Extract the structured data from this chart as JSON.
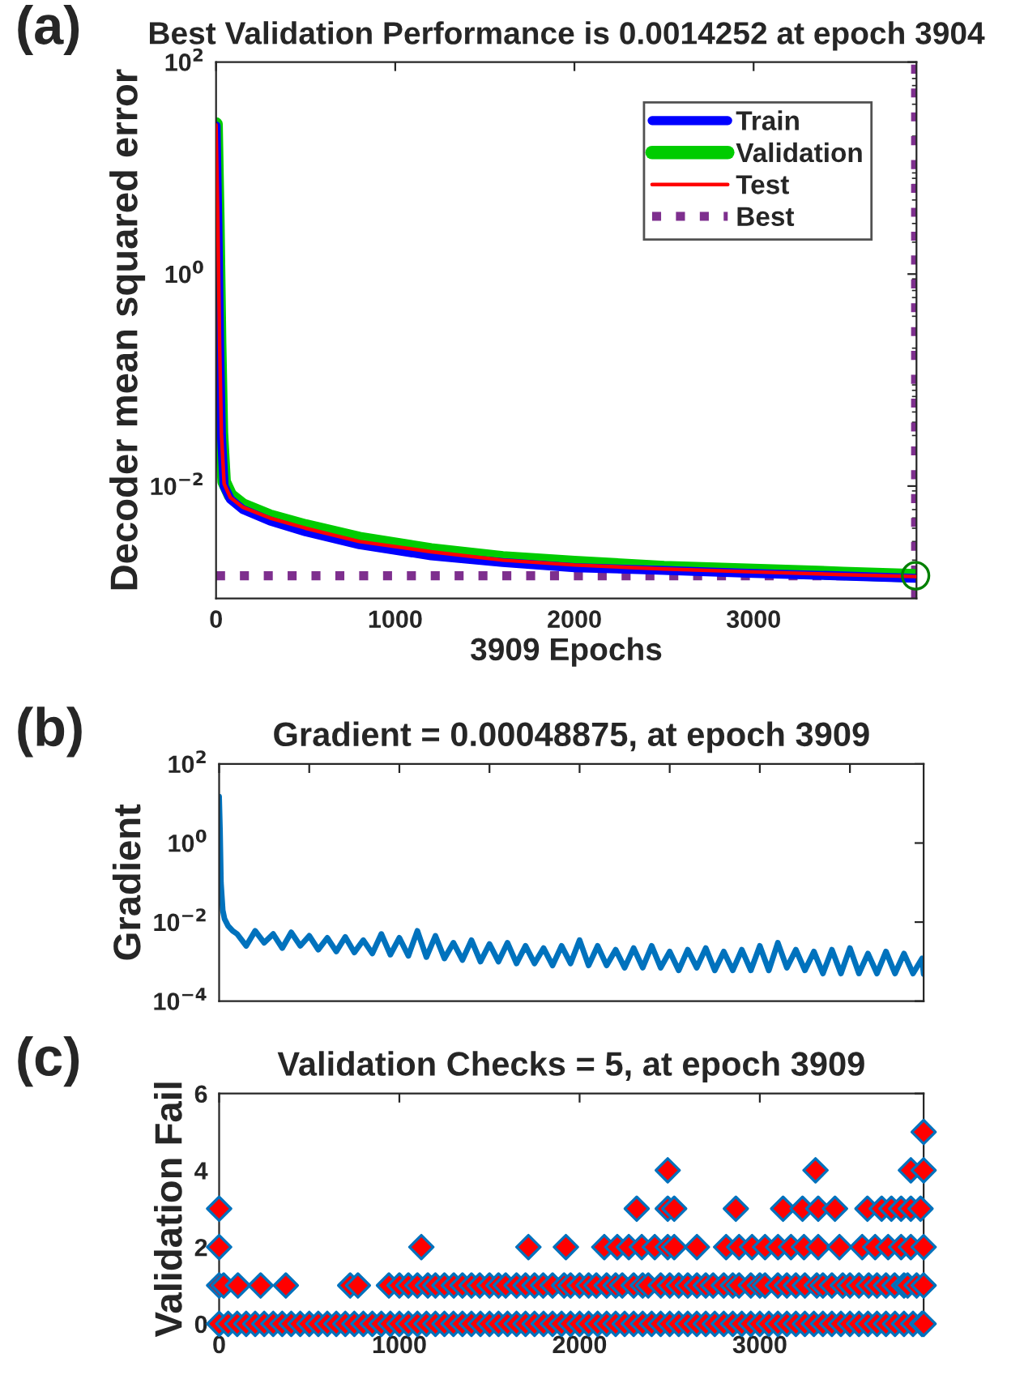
{
  "chart_data": [
    {
      "type": "line",
      "title": "Best Validation Performance is 0.0014252 at epoch 3904",
      "xlabel": "3909 Epochs",
      "ylabel": "Decoder mean squared error",
      "annotations": [
        "(a)"
      ],
      "log": "y",
      "legend": "top right",
      "xlim": [
        0,
        3909
      ],
      "xticks": [
        0,
        1000,
        2000,
        3000
      ],
      "ylim": [
        0.00087,
        100
      ],
      "yticks": [
        {
          "value": 0.01,
          "label": "10$^{−2}$"
        },
        {
          "value": 1,
          "label": "10$^{0}$"
        },
        {
          "value": 100,
          "label": "10$^{2}$"
        }
      ],
      "series": [
        {
          "name": "Train",
          "color": "#0000ff",
          "x": [
            0,
            10,
            20,
            30,
            45,
            80,
            150,
            300,
            500,
            800,
            1200,
            1600,
            2000,
            2500,
            3000,
            3500,
            3904
          ],
          "values": [
            25,
            3,
            0.2,
            0.03,
            0.01,
            0.0075,
            0.006,
            0.0047,
            0.0037,
            0.0028,
            0.0022,
            0.0019,
            0.0017,
            0.0016,
            0.0015,
            0.00142,
            0.00135
          ]
        },
        {
          "name": "Validation",
          "color": "#00cc00",
          "x": [
            0,
            10,
            20,
            30,
            45,
            80,
            150,
            300,
            500,
            800,
            1200,
            1600,
            2000,
            2500,
            3000,
            3500,
            3904
          ],
          "values": [
            26,
            3.2,
            0.22,
            0.032,
            0.011,
            0.0082,
            0.0066,
            0.0052,
            0.0042,
            0.0032,
            0.0025,
            0.0021,
            0.0019,
            0.0017,
            0.0016,
            0.0015,
            0.0014252
          ]
        },
        {
          "name": "Test",
          "color": "#ff0000",
          "x": [
            0,
            10,
            20,
            30,
            45,
            80,
            150,
            300,
            500,
            800,
            1200,
            1600,
            2000,
            2500,
            3000,
            3500,
            3904
          ],
          "values": [
            25.5,
            3.1,
            0.21,
            0.031,
            0.0105,
            0.0078,
            0.0063,
            0.005,
            0.004,
            0.003,
            0.0024,
            0.002,
            0.0018,
            0.00165,
            0.00155,
            0.00146,
            0.0014
          ]
        },
        {
          "type": "scatter",
          "color": "#008000",
          "marker": "circle",
          "x": [
            3904
          ],
          "values": [
            0.0014252
          ]
        }
      ],
      "ref_lines": [
        {
          "axis": "y",
          "value": 0.0014252,
          "label": "Best",
          "color": "#7e2f8e",
          "line_style": "dotted"
        },
        {
          "axis": "x",
          "value": 3904,
          "color": "#7e2f8e",
          "line_style": "dotted"
        }
      ]
    },
    {
      "type": "line",
      "title": "Gradient = 0.00048875, at epoch 3909",
      "ylabel": "Gradient",
      "annotations": [
        "(b)"
      ],
      "log": "y",
      "tick_labels": "y",
      "xlim": [
        0,
        3909
      ],
      "xticks": [
        {
          "value": 0,
          "label": null
        },
        {
          "value": 500,
          "label": null
        },
        {
          "value": 1000,
          "label": null
        },
        {
          "value": 1500,
          "label": null
        },
        {
          "value": 2000,
          "label": null
        },
        {
          "value": 2500,
          "label": null
        },
        {
          "value": 3000,
          "label": null
        },
        {
          "value": 3500,
          "label": null
        }
      ],
      "ylim": [
        0.0001,
        100
      ],
      "yticks": [
        {
          "value": 0.0001,
          "label": "10$^{−4}$"
        },
        {
          "value": 0.01,
          "label": "10$^{−2}$"
        },
        {
          "value": 1,
          "label": "10$^{0}$"
        },
        {
          "value": 100,
          "label": "10$^{2}$"
        }
      ],
      "series": [
        {
          "color": "#0072bd",
          "x": [
            0,
            5,
            10,
            20,
            30,
            50,
            75,
            100,
            150,
            200,
            250,
            300,
            350,
            400,
            450,
            500,
            550,
            600,
            650,
            700,
            750,
            800,
            850,
            900,
            950,
            1000,
            1050,
            1100,
            1150,
            1200,
            1250,
            1300,
            1350,
            1400,
            1450,
            1500,
            1550,
            1600,
            1650,
            1700,
            1750,
            1800,
            1850,
            1900,
            1950,
            2000,
            2050,
            2100,
            2150,
            2200,
            2250,
            2300,
            2350,
            2400,
            2450,
            2500,
            2550,
            2600,
            2650,
            2700,
            2750,
            2800,
            2850,
            2900,
            2950,
            3000,
            3050,
            3100,
            3150,
            3200,
            3250,
            3300,
            3350,
            3400,
            3450,
            3500,
            3550,
            3600,
            3650,
            3700,
            3750,
            3800,
            3850,
            3900,
            3909
          ],
          "values": [
            15,
            2,
            0.1,
            0.02,
            0.012,
            0.008,
            0.006,
            0.005,
            0.0025,
            0.006,
            0.003,
            0.005,
            0.0022,
            0.0055,
            0.0025,
            0.0045,
            0.002,
            0.004,
            0.0018,
            0.0042,
            0.0017,
            0.0035,
            0.0016,
            0.005,
            0.0015,
            0.004,
            0.0014,
            0.006,
            0.0013,
            0.0045,
            0.0012,
            0.003,
            0.0011,
            0.0035,
            0.001,
            0.0028,
            0.001,
            0.003,
            0.0009,
            0.0025,
            0.0009,
            0.0022,
            0.0008,
            0.0025,
            0.0009,
            0.0035,
            0.0008,
            0.0025,
            0.0008,
            0.002,
            0.0007,
            0.0022,
            0.0007,
            0.0025,
            0.0007,
            0.0018,
            0.0006,
            0.002,
            0.0007,
            0.0022,
            0.0006,
            0.0018,
            0.0006,
            0.002,
            0.0006,
            0.0025,
            0.0006,
            0.003,
            0.0007,
            0.002,
            0.0006,
            0.0018,
            0.0005,
            0.002,
            0.0005,
            0.0022,
            0.0005,
            0.0016,
            0.0005,
            0.0018,
            0.0005,
            0.0016,
            0.0005,
            0.0012,
            0.00048875
          ]
        }
      ]
    },
    {
      "type": "scatter",
      "title": "Validation Checks = 5, at epoch 3909",
      "ylabel": "Validation Fail",
      "annotations": [
        "(c)"
      ],
      "marker": "diamond",
      "xlim": [
        0,
        3909
      ],
      "xticks": [
        0,
        1000,
        2000,
        3000
      ],
      "ylim": [
        0,
        6
      ],
      "yticks": [
        0,
        2,
        4,
        6
      ],
      "series": [
        {
          "color": "#ff0000",
          "x": [
            0,
            50,
            100,
            150,
            200,
            250,
            300,
            350,
            400,
            450,
            500,
            550,
            600,
            650,
            700,
            750,
            800,
            850,
            900,
            950,
            1000,
            1050,
            1100,
            1150,
            1200,
            1250,
            1300,
            1350,
            1400,
            1450,
            1500,
            1550,
            1600,
            1650,
            1700,
            1750,
            1800,
            1850,
            1900,
            1950,
            2000,
            2050,
            2100,
            2150,
            2200,
            2250,
            2300,
            2350,
            2400,
            2450,
            2500,
            2550,
            2600,
            2650,
            2700,
            2750,
            2800,
            2850,
            2900,
            2950,
            3000,
            3050,
            3100,
            3150,
            3200,
            3250,
            3300,
            3350,
            3400,
            3450,
            3500,
            3550,
            3600,
            3650,
            3700,
            3750,
            3800,
            3850,
            3900,
            3909,
            0,
            25,
            104,
            230,
            370,
            727,
            770,
            942,
            1000,
            1050,
            1100,
            1158,
            1200,
            1250,
            1302,
            1350,
            1400,
            1446,
            1500,
            1550,
            1590,
            1650,
            1700,
            1750,
            1798,
            1850,
            1914,
            1950,
            2000,
            2050,
            2093,
            2150,
            2200,
            2237,
            2300,
            2350,
            2381,
            2450,
            2500,
            2550,
            2600,
            2651,
            2700,
            2741,
            2800,
            2850,
            2885,
            2950,
            3000,
            3029,
            3100,
            3150,
            3200,
            3250,
            3316,
            3350,
            3400,
            3460,
            3500,
            3550,
            3604,
            3650,
            3700,
            3748,
            3800,
            3820,
            3870,
            3909,
            0,
            1122,
            1716,
            1924,
            2137,
            2209,
            2273,
            2345,
            2417,
            2489,
            2525,
            2651,
            2813,
            2885,
            2957,
            3029,
            3101,
            3173,
            3245,
            3324,
            3442,
            3568,
            3640,
            3712,
            3784,
            3838,
            3909,
            0,
            2317,
            2489,
            2525,
            2867,
            3129,
            3237,
            3324,
            3417,
            3597,
            3676,
            3730,
            3784,
            3838,
            3892,
            2489,
            3309,
            3838,
            3909,
            3909
          ],
          "values": [
            0,
            0,
            0,
            0,
            0,
            0,
            0,
            0,
            0,
            0,
            0,
            0,
            0,
            0,
            0,
            0,
            0,
            0,
            0,
            0,
            0,
            0,
            0,
            0,
            0,
            0,
            0,
            0,
            0,
            0,
            0,
            0,
            0,
            0,
            0,
            0,
            0,
            0,
            0,
            0,
            0,
            0,
            0,
            0,
            0,
            0,
            0,
            0,
            0,
            0,
            0,
            0,
            0,
            0,
            0,
            0,
            0,
            0,
            0,
            0,
            0,
            0,
            0,
            0,
            0,
            0,
            0,
            0,
            0,
            0,
            0,
            0,
            0,
            0,
            0,
            0,
            0,
            0,
            0,
            0,
            1,
            1,
            1,
            1,
            1,
            1,
            1,
            1,
            1,
            1,
            1,
            1,
            1,
            1,
            1,
            1,
            1,
            1,
            1,
            1,
            1,
            1,
            1,
            1,
            1,
            1,
            1,
            1,
            1,
            1,
            1,
            1,
            1,
            1,
            1,
            1,
            1,
            1,
            1,
            1,
            1,
            1,
            1,
            1,
            1,
            1,
            1,
            1,
            1,
            1,
            1,
            1,
            1,
            1,
            1,
            1,
            1,
            1,
            1,
            1,
            1,
            1,
            1,
            1,
            1,
            1,
            1,
            1,
            2,
            2,
            2,
            2,
            2,
            2,
            2,
            2,
            2,
            2,
            2,
            2,
            2,
            2,
            2,
            2,
            2,
            2,
            2,
            2,
            2,
            2,
            2,
            2,
            2,
            2,
            2,
            3,
            3,
            3,
            3,
            3,
            3,
            3,
            3,
            3,
            3,
            3,
            3,
            3,
            3,
            3,
            4,
            4,
            4,
            4,
            5
          ]
        }
      ]
    }
  ]
}
